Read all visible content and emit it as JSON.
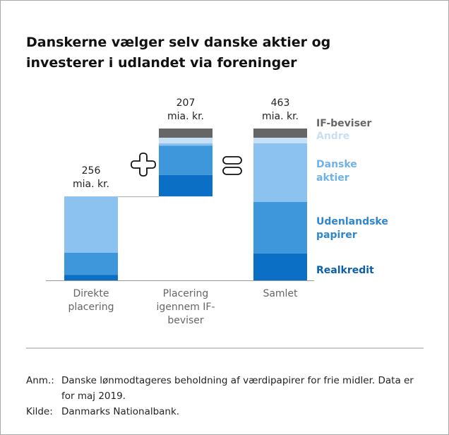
{
  "chart_data": {
    "type": "waterfall",
    "title": "Danskerne vælger selv danske aktier og investerer i udlandet via foreninger",
    "categories": [
      "Direkte\nplacering",
      "Placering\nigennem IF-\nbeviser",
      "Samlet"
    ],
    "total_labels": [
      "256\nmia. kr.",
      "207\nmia. kr.",
      "463\nmia. kr."
    ],
    "series": [
      {
        "name": "Realkredit",
        "color": "#0b6fc6",
        "text_color": "#0b5fae",
        "values": [
          17,
          65,
          82
        ]
      },
      {
        "name": "Udenlandske\npapirer",
        "color": "#3e97db",
        "text_color": "#2f86cf",
        "values": [
          67,
          90,
          157
        ]
      },
      {
        "name": "Danske\naktier",
        "color": "#8cc2f0",
        "text_color": "#6fb2ea",
        "values": [
          172,
          7,
          179
        ]
      },
      {
        "name": "Andre",
        "color": "#c7e0f6",
        "text_color": "#c7e0f6",
        "values": [
          0,
          17,
          17
        ]
      },
      {
        "name": "IF-beviser",
        "color": "#666666",
        "text_color": "#666666",
        "values": [
          0,
          28,
          28
        ]
      }
    ],
    "notes": [
      {
        "label": "Anm.:",
        "text": "Danske lønmodtageres beholdning af værdipapirer for frie midler. Data er for maj 2019."
      },
      {
        "label": "Kilde:",
        "text": "Danmarks Nationalbank."
      }
    ]
  }
}
